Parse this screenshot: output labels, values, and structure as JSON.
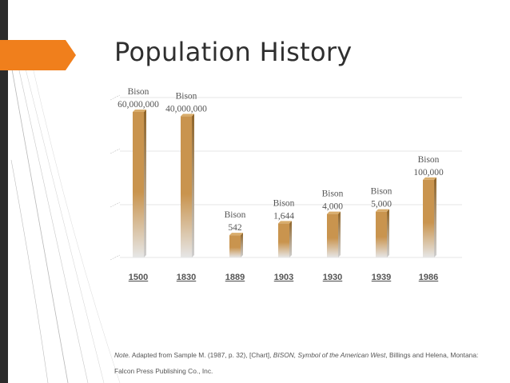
{
  "slide": {
    "title": "Population History",
    "note_prefix": "Note.",
    "note_part1": " Adapted from Sample M. (1987, p. 32), [Chart], ",
    "note_italic": "BISON, Symbol of the American West",
    "note_part2": ", Billings and Helena, Montana: Falcon Press Publishing Co., Inc."
  },
  "colors": {
    "accent": "#f07f1c",
    "bar": "#c9944e",
    "bar_side": "#8f6428",
    "bar_top": "#d9ad6c",
    "dark_bar": "#2b2b2b"
  },
  "chart_data": {
    "type": "bar",
    "categories": [
      "1500",
      "1830",
      "1889",
      "1903",
      "1930",
      "1939",
      "1986"
    ],
    "values": [
      60000000,
      40000000,
      542,
      1644,
      4000,
      5000,
      100000
    ],
    "data_labels": [
      [
        "Bison",
        "60,000,000"
      ],
      [
        "Bison",
        "40,000,000"
      ],
      [
        "Bison",
        "542"
      ],
      [
        "Bison",
        "1,644"
      ],
      [
        "Bison",
        "4,000"
      ],
      [
        "Bison",
        "5,000"
      ],
      [
        "Bison",
        "100,000"
      ]
    ],
    "title": "",
    "xlabel": "",
    "ylabel": "",
    "scale": "log",
    "grid": true
  }
}
